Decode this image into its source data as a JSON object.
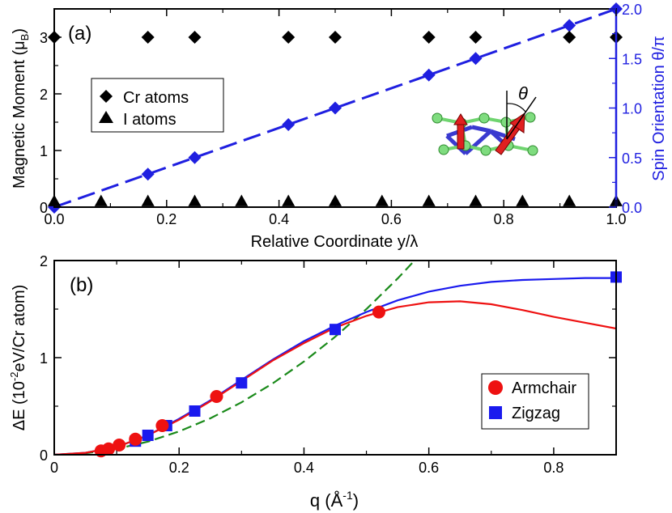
{
  "colors": {
    "spin": "#1f1fe0",
    "armchair": "#ee1111",
    "zigzag": "#1a1aee",
    "fit": "#1a8a1a",
    "axis": "#000000"
  },
  "chart_data": [
    {
      "type": "scatter",
      "panel_label": "(a)",
      "xlabel": "Relative Coordinate y/λ",
      "ylabel_left": "Magnetic Moment (μ",
      "ylabel_left_sub": "B",
      "ylabel_left_end": ")",
      "ylabel_right": "Spin Orientation θ/π",
      "xlim": [
        0,
        1
      ],
      "ylim_left": [
        0,
        3.5
      ],
      "ylim_right": [
        0,
        2
      ],
      "xticks": [
        0.0,
        0.2,
        0.4,
        0.6,
        0.8,
        1.0
      ],
      "xtick_labels": [
        "0.0",
        "0.2",
        "0.4",
        "0.6",
        "0.8",
        "1.0"
      ],
      "yticks_left": [
        0,
        1,
        2,
        3
      ],
      "ytick_labels_left": [
        "0",
        "1",
        "2",
        "3"
      ],
      "yticks_right": [
        0.0,
        0.5,
        1.0,
        1.5,
        2.0
      ],
      "ytick_labels_right": [
        "0.0",
        "0.5",
        "1.0",
        "1.5",
        "2.0"
      ],
      "legend_entries": [
        "Cr atoms",
        "I atoms"
      ],
      "inset_symbol": "θ",
      "series": [
        {
          "name": "Cr atoms",
          "marker": "diamond",
          "axis": "left",
          "x": [
            0.0,
            0.1667,
            0.25,
            0.4167,
            0.5,
            0.6667,
            0.75,
            0.9167,
            1.0
          ],
          "y": [
            3.0,
            3.0,
            3.0,
            3.0,
            3.0,
            3.0,
            3.0,
            3.0,
            3.0
          ]
        },
        {
          "name": "I atoms",
          "marker": "triangle",
          "axis": "left",
          "x": [
            0.0,
            0.0833,
            0.1667,
            0.25,
            0.3333,
            0.4167,
            0.5,
            0.5833,
            0.6667,
            0.75,
            0.8333,
            0.9167,
            1.0
          ],
          "y": [
            0.05,
            0.05,
            0.05,
            0.05,
            0.05,
            0.05,
            0.05,
            0.05,
            0.05,
            0.05,
            0.05,
            0.05,
            0.05
          ]
        },
        {
          "name": "Spin orientation",
          "marker": "diamond",
          "axis": "right",
          "line": "dashed",
          "x": [
            0.0,
            0.1667,
            0.25,
            0.4167,
            0.5,
            0.6667,
            0.75,
            0.9167,
            1.0
          ],
          "y": [
            0.0,
            0.333,
            0.5,
            0.833,
            1.0,
            1.333,
            1.5,
            1.833,
            2.0
          ]
        }
      ]
    },
    {
      "type": "scatter",
      "panel_label": "(b)",
      "xlabel": "q (Å",
      "xlabel_sup": "-1",
      "xlabel_end": ")",
      "ylabel": "ΔE (10",
      "ylabel_sup": "-2",
      "ylabel_end": "eV/Cr atom)",
      "xlim": [
        0,
        0.9
      ],
      "ylim": [
        0,
        2
      ],
      "xticks": [
        0,
        0.2,
        0.4,
        0.6,
        0.8
      ],
      "xtick_labels": [
        "0",
        "0.2",
        "0.4",
        "0.6",
        "0.8"
      ],
      "yticks": [
        0,
        1,
        2
      ],
      "ytick_labels": [
        "0",
        "1",
        "2"
      ],
      "legend_entries": [
        "Armchair",
        "Zigzag"
      ],
      "series": [
        {
          "name": "Armchair",
          "marker": "circle",
          "x": [
            0.075,
            0.087,
            0.104,
            0.13,
            0.173,
            0.26,
            0.52
          ],
          "y": [
            0.04,
            0.06,
            0.1,
            0.16,
            0.3,
            0.6,
            1.47
          ]
        },
        {
          "name": "Zigzag",
          "marker": "square",
          "x": [
            0.13,
            0.15,
            0.18,
            0.225,
            0.3,
            0.45,
            0.9
          ],
          "y": [
            0.14,
            0.2,
            0.3,
            0.45,
            0.74,
            1.29,
            1.83
          ]
        },
        {
          "name": "Armchair fit",
          "line": "solid",
          "color": "armchair",
          "x": [
            0,
            0.05,
            0.1,
            0.15,
            0.2,
            0.25,
            0.3,
            0.35,
            0.4,
            0.45,
            0.5,
            0.55,
            0.6,
            0.65,
            0.7,
            0.75,
            0.8,
            0.85,
            0.9
          ],
          "y": [
            0,
            0.02,
            0.08,
            0.2,
            0.36,
            0.55,
            0.76,
            0.97,
            1.15,
            1.31,
            1.43,
            1.52,
            1.57,
            1.58,
            1.55,
            1.49,
            1.42,
            1.36,
            1.3
          ]
        },
        {
          "name": "Zigzag fit",
          "line": "solid",
          "color": "zigzag",
          "x": [
            0,
            0.05,
            0.1,
            0.15,
            0.2,
            0.25,
            0.3,
            0.35,
            0.4,
            0.45,
            0.5,
            0.55,
            0.6,
            0.65,
            0.7,
            0.75,
            0.8,
            0.85,
            0.9
          ],
          "y": [
            0,
            0.02,
            0.08,
            0.2,
            0.37,
            0.56,
            0.77,
            0.98,
            1.17,
            1.33,
            1.47,
            1.59,
            1.68,
            1.74,
            1.78,
            1.8,
            1.81,
            1.82,
            1.82
          ]
        },
        {
          "name": "Quadratic fit",
          "line": "dashed",
          "color": "fit",
          "x": [
            0,
            0.05,
            0.1,
            0.15,
            0.2,
            0.25,
            0.3,
            0.35,
            0.4,
            0.45,
            0.5,
            0.55,
            0.577
          ],
          "y": [
            0,
            0.015,
            0.06,
            0.135,
            0.24,
            0.375,
            0.54,
            0.735,
            0.96,
            1.215,
            1.5,
            1.815,
            2.0
          ]
        }
      ]
    }
  ]
}
